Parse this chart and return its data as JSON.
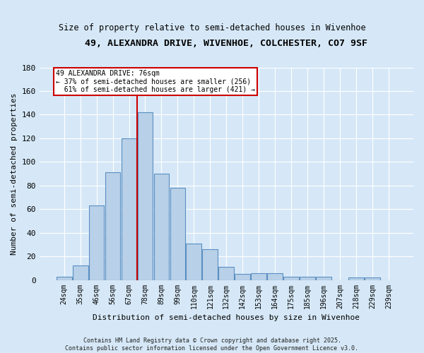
{
  "title1": "49, ALEXANDRA DRIVE, WIVENHOE, COLCHESTER, CO7 9SF",
  "title2": "Size of property relative to semi-detached houses in Wivenhoe",
  "xlabel": "Distribution of semi-detached houses by size in Wivenhoe",
  "ylabel": "Number of semi-detached properties",
  "categories": [
    "24sqm",
    "35sqm",
    "46sqm",
    "56sqm",
    "67sqm",
    "78sqm",
    "89sqm",
    "99sqm",
    "110sqm",
    "121sqm",
    "132sqm",
    "142sqm",
    "153sqm",
    "164sqm",
    "175sqm",
    "185sqm",
    "196sqm",
    "207sqm",
    "218sqm",
    "229sqm",
    "239sqm"
  ],
  "values": [
    3,
    12,
    63,
    91,
    120,
    142,
    90,
    78,
    31,
    26,
    11,
    5,
    6,
    6,
    3,
    3,
    3,
    0,
    2,
    2,
    0
  ],
  "bar_color": "#b8d0e8",
  "bar_edge_color": "#5a8fc2",
  "vline_x": 4.5,
  "vline_color": "#cc0000",
  "annotation_text": "49 ALEXANDRA DRIVE: 76sqm\n← 37% of semi-detached houses are smaller (256)\n  61% of semi-detached houses are larger (421) →",
  "annotation_box_color": "#cc0000",
  "background_color": "#d6e8f7",
  "plot_bg_color": "#d6e8f7",
  "footer_text": "Contains HM Land Registry data © Crown copyright and database right 2025.\nContains public sector information licensed under the Open Government Licence v3.0.",
  "ylim": [
    0,
    180
  ],
  "yticks": [
    0,
    20,
    40,
    60,
    80,
    100,
    120,
    140,
    160,
    180
  ]
}
